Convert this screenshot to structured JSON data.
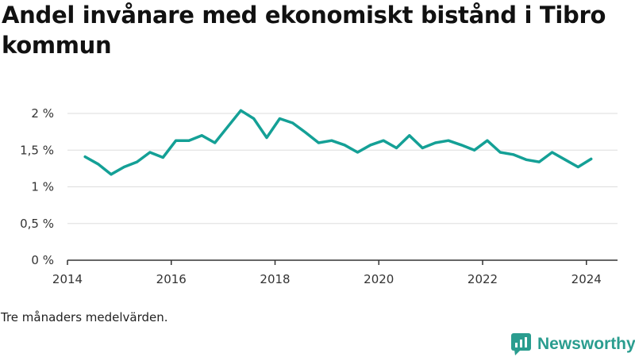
{
  "title": "Andel invånare med ekonomiskt bistånd i Tibro kommun",
  "note": "Tre månaders medelvärden.",
  "brand": {
    "name": "Newsworthy",
    "icon": "newsworthy-logo-icon"
  },
  "colors": {
    "line": "#14a096",
    "grid": "#dddddd",
    "axis": "#333333",
    "brand": "#2a9d8f"
  },
  "chart_data": {
    "type": "line",
    "title": "Andel invånare med ekonomiskt bistånd i Tibro kommun",
    "xlabel": "",
    "ylabel": "",
    "xlim": [
      2014,
      2024.6
    ],
    "ylim": [
      0,
      2
    ],
    "x_ticks": [
      2014,
      2016,
      2018,
      2020,
      2022,
      2024
    ],
    "y_ticks": [
      {
        "value": 0,
        "label": "0 %"
      },
      {
        "value": 0.5,
        "label": "0,5 %"
      },
      {
        "value": 1,
        "label": "1 %"
      },
      {
        "value": 1.5,
        "label": "1,5 %"
      },
      {
        "value": 2,
        "label": "2 %"
      }
    ],
    "grid": true,
    "series": [
      {
        "x": [
          2014.34,
          2014.59,
          2014.84,
          2015.09,
          2015.34,
          2015.59,
          2015.84,
          2016.09,
          2016.34,
          2016.59,
          2016.84,
          2017.09,
          2017.34,
          2017.59,
          2017.84,
          2018.09,
          2018.34,
          2018.59,
          2018.84,
          2019.09,
          2019.34,
          2019.59,
          2019.84,
          2020.09,
          2020.34,
          2020.59,
          2020.84,
          2021.09,
          2021.34,
          2021.59,
          2021.84,
          2022.09,
          2022.34,
          2022.59,
          2022.84,
          2023.09,
          2023.34,
          2023.59,
          2023.84,
          2024.09
        ],
        "values": [
          1.41,
          1.31,
          1.17,
          1.27,
          1.34,
          1.47,
          1.4,
          1.63,
          1.63,
          1.7,
          1.6,
          1.82,
          2.04,
          1.93,
          1.67,
          1.93,
          1.87,
          1.74,
          1.6,
          1.63,
          1.57,
          1.47,
          1.57,
          1.63,
          1.53,
          1.7,
          1.53,
          1.6,
          1.63,
          1.57,
          1.5,
          1.63,
          1.47,
          1.44,
          1.37,
          1.34,
          1.47,
          1.37,
          1.27,
          1.38
        ]
      }
    ]
  }
}
